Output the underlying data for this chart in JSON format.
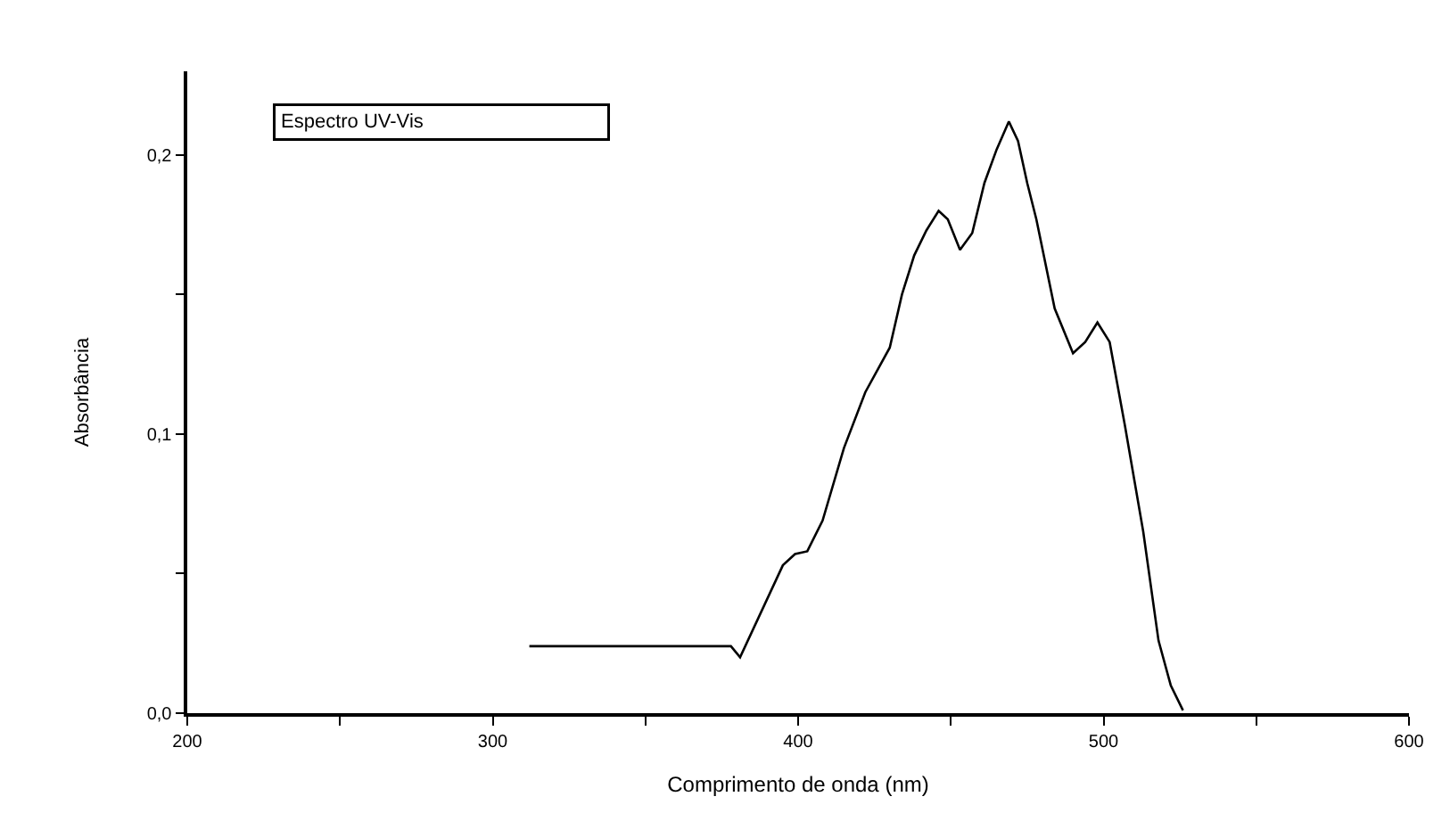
{
  "chart_data": {
    "type": "line",
    "xlabel": "Comprimento de onda (nm)",
    "ylabel": "Absorbância",
    "annotations": [
      "Espectro UV-Vis"
    ],
    "x": [
      312,
      378,
      381,
      395,
      399,
      403,
      408,
      415,
      422,
      430,
      434,
      438,
      442,
      446,
      449,
      453,
      457,
      461,
      465,
      469,
      472,
      475,
      478,
      484,
      490,
      494,
      498,
      502,
      507,
      513,
      518,
      522,
      526
    ],
    "series": [
      {
        "color": "#000000",
        "values": [
          0.024,
          0.024,
          0.02,
          0.053,
          0.057,
          0.058,
          0.069,
          0.095,
          0.115,
          0.131,
          0.15,
          0.164,
          0.173,
          0.18,
          0.177,
          0.166,
          0.172,
          0.19,
          0.202,
          0.212,
          0.205,
          0.19,
          0.177,
          0.145,
          0.129,
          0.133,
          0.14,
          0.133,
          0.103,
          0.065,
          0.026,
          0.01,
          0.001
        ]
      }
    ],
    "xlim": [
      200,
      600
    ],
    "ylim": [
      0,
      0.23
    ],
    "xticks": [
      200,
      {
        "value": 250,
        "label": null
      },
      300,
      {
        "value": 350,
        "label": null
      },
      400,
      {
        "value": 450,
        "label": null
      },
      500,
      {
        "value": 550,
        "label": null
      },
      600
    ],
    "yticks": [
      {
        "value": 0,
        "label": "0,0"
      },
      {
        "value": 0.05,
        "label": null
      },
      {
        "value": 0.1,
        "label": "0,1"
      },
      {
        "value": 0.15,
        "label": null
      },
      {
        "value": 0.2,
        "label": "0,2"
      }
    ],
    "marker": "none",
    "line_style": "solid"
  }
}
